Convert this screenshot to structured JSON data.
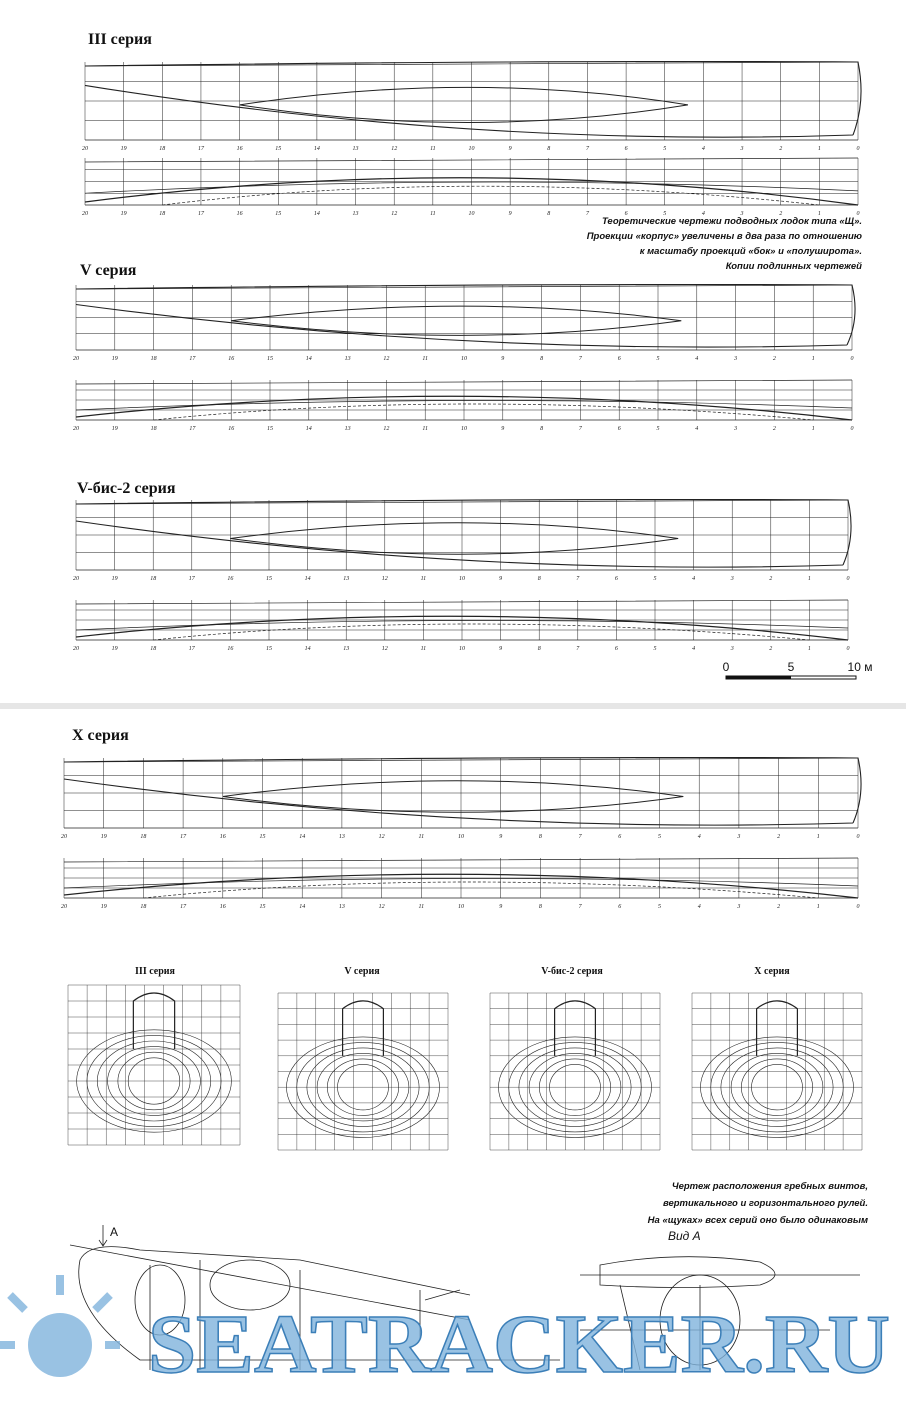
{
  "sections": [
    {
      "title": "III серия"
    },
    {
      "title": "V серия"
    },
    {
      "title": "V-бис-2 серия"
    },
    {
      "title": "X серия"
    }
  ],
  "stations": [
    "20",
    "19",
    "18",
    "17",
    "16",
    "15",
    "14",
    "13",
    "12",
    "11",
    "10",
    "9",
    "8",
    "7",
    "6",
    "5",
    "4",
    "3",
    "2",
    "1",
    "0"
  ],
  "caption_lines": [
    "Теоретические чертежи подводных лодок типа «Щ».",
    "Проекции «корпус» увеличены в два раза по отношению",
    "к масштабу проекций «бок» и «полуширота».",
    "Копии подлинных чертежей"
  ],
  "scale": {
    "labels": [
      "0",
      "5",
      "10 м"
    ]
  },
  "body_plans": [
    {
      "title": "III серия"
    },
    {
      "title": "V серия"
    },
    {
      "title": "V-бис-2 серия"
    },
    {
      "title": "X серия"
    }
  ],
  "propeller_caption": [
    "Чертеж расположения гребных винтов,",
    "вертикального и горизонтального рулей.",
    "На «щуках» всех серий оно было одинаковым"
  ],
  "view_label": "Вид А",
  "arrow_label": "A",
  "watermark": "SEATRACKER.RU"
}
